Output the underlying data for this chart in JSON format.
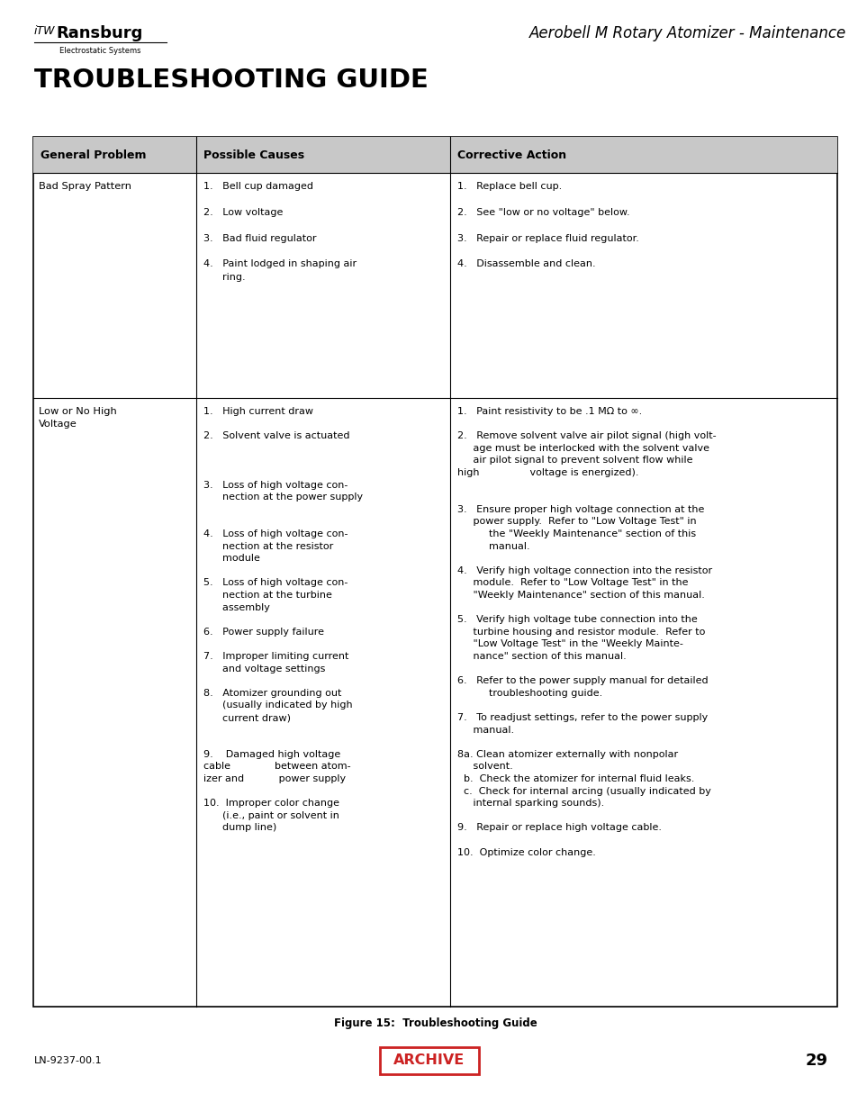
{
  "page_title": "TROUBLESHOOTING GUIDE",
  "header_title": "Aerobell M Rotary Atomizer - Maintenance",
  "logo_text_itw": "iTW",
  "logo_text_ransburg": "Ransburg",
  "logo_subtitle": "Electrostatic Systems",
  "figure_caption": "Figure 15:  Troubleshooting Guide",
  "page_number": "29",
  "doc_number": "LN-9237-00.1",
  "archive_text": "ARCHIVE",
  "col_headers": [
    "General Problem",
    "Possible Causes",
    "Corrective Action"
  ],
  "header_bg": "#c8c8c8",
  "causes_row1": "1.   Bell cup damaged\n\n2.   Low voltage\n\n3.   Bad fluid regulator\n\n4.   Paint lodged in shaping air\n      ring.",
  "actions_row1": "1.   Replace bell cup.\n\n2.   See \"low or no voltage\" below.\n\n3.   Repair or replace fluid regulator.\n\n4.   Disassemble and clean.",
  "causes_row2": "1.   High current draw\n\n2.   Solvent valve is actuated\n\n\n\n3.   Loss of high voltage con-\n      nection at the power supply\n\n\n4.   Loss of high voltage con-\n      nection at the resistor\n      module\n\n5.   Loss of high voltage con-\n      nection at the turbine\n      assembly\n\n6.   Power supply failure\n\n7.   Improper limiting current\n      and voltage settings\n\n8.   Atomizer grounding out\n      (usually indicated by high\n      current draw)\n\n\n9.    Damaged high voltage\ncable              between atom-\nizer and           power supply\n\n10.  Improper color change\n      (i.e., paint or solvent in\n      dump line)",
  "actions_row2": "1.   Paint resistivity to be .1 MΩ to ∞.\n\n2.   Remove solvent valve air pilot signal (high volt-\n     age must be interlocked with the solvent valve\n     air pilot signal to prevent solvent flow while\nhigh                voltage is energized).\n\n\n3.   Ensure proper high voltage connection at the\n     power supply.  Refer to \"Low Voltage Test\" in\n          the \"Weekly Maintenance\" section of this\n          manual.\n\n4.   Verify high voltage connection into the resistor\n     module.  Refer to \"Low Voltage Test\" in the\n     \"Weekly Maintenance\" section of this manual.\n\n5.   Verify high voltage tube connection into the\n     turbine housing and resistor module.  Refer to\n     \"Low Voltage Test\" in the \"Weekly Mainte-\n     nance\" section of this manual.\n\n6.   Refer to the power supply manual for detailed\n          troubleshooting guide.\n\n7.   To readjust settings, refer to the power supply\n     manual.\n\n8a. Clean atomizer externally with nonpolar\n     solvent.\n  b.  Check the atomizer for internal fluid leaks.\n  c.  Check for internal arcing (usually indicated by\n     internal sparking sounds).\n\n9.   Repair or replace high voltage cable.\n\n10.  Optimize color change."
}
